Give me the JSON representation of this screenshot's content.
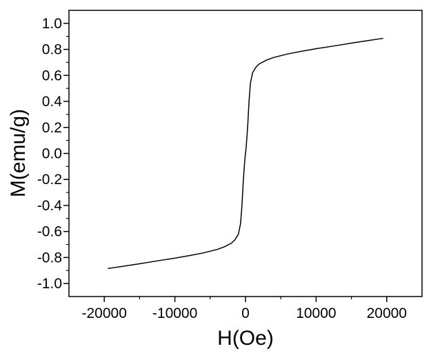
{
  "chart_data": {
    "type": "line",
    "title": "",
    "xlabel": "H(Oe)",
    "ylabel": "M(emu/g)",
    "xlim": [
      -25000,
      25000
    ],
    "ylim": [
      -1.1,
      1.1
    ],
    "xticks": [
      -20000,
      -10000,
      0,
      10000,
      20000
    ],
    "xtick_labels": [
      "-20000",
      "-10000",
      "0",
      "10000",
      "20000"
    ],
    "yticks": [
      -1.0,
      -0.8,
      -0.6,
      -0.4,
      -0.2,
      0.0,
      0.2,
      0.4,
      0.6,
      0.8,
      1.0
    ],
    "ytick_labels": [
      "-1.0",
      "-0.8",
      "-0.6",
      "-0.4",
      "-0.2",
      "0.0",
      "0.2",
      "0.4",
      "0.6",
      "0.8",
      "1.0"
    ],
    "grid": false,
    "legend": "none",
    "series": [
      {
        "color": "#000000",
        "x": [
          -19500,
          -17000,
          -15000,
          -12500,
          -10000,
          -8000,
          -6000,
          -4000,
          -3000,
          -2000,
          -1500,
          -1000,
          -700,
          -500,
          -300,
          -100,
          0,
          100,
          300,
          500,
          700,
          1000,
          1500,
          2000,
          3000,
          4000,
          6000,
          8000,
          10000,
          12500,
          15000,
          17000,
          19500
        ],
        "y": [
          -0.885,
          -0.865,
          -0.848,
          -0.826,
          -0.805,
          -0.786,
          -0.765,
          -0.738,
          -0.718,
          -0.69,
          -0.665,
          -0.62,
          -0.54,
          -0.4,
          -0.2,
          -0.05,
          0.0,
          0.05,
          0.2,
          0.4,
          0.54,
          0.62,
          0.665,
          0.69,
          0.718,
          0.738,
          0.765,
          0.786,
          0.805,
          0.826,
          0.848,
          0.865,
          0.885
        ]
      }
    ]
  }
}
